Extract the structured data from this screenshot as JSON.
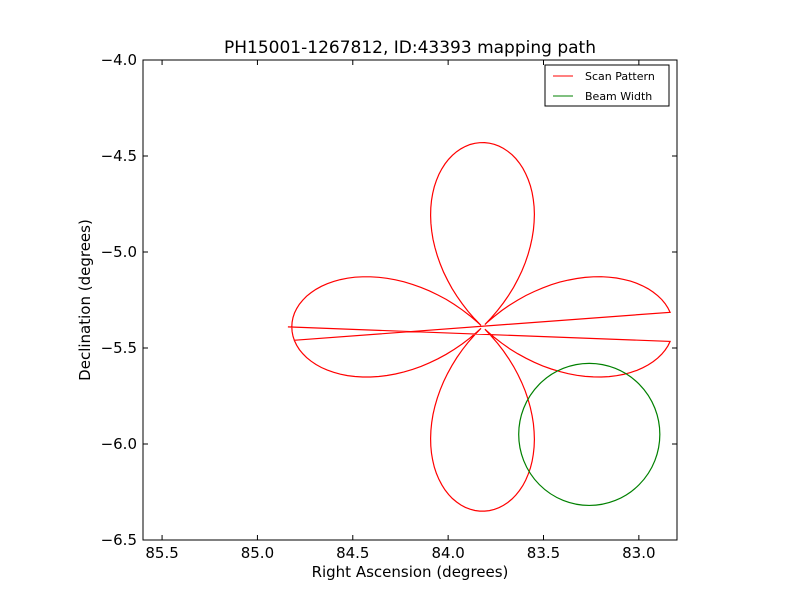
{
  "chart_data": {
    "type": "line",
    "title": "PH15001-1267812, ID:43393 mapping path",
    "xlabel": "Right Ascension (degrees)",
    "ylabel": "Declination (degrees)",
    "xlim": [
      85.6,
      82.8
    ],
    "ylim": [
      -6.5,
      -4.0
    ],
    "x_inverted": true,
    "xticks": [
      85.5,
      85.0,
      84.5,
      84.0,
      83.5,
      83.0
    ],
    "xtick_labels": [
      "85.5",
      "85.0",
      "84.5",
      "84.0",
      "83.5",
      "83.0"
    ],
    "yticks": [
      -4.0,
      -4.5,
      -5.0,
      -5.5,
      -6.0,
      -6.5
    ],
    "ytick_labels": [
      "−4.0",
      "−4.5",
      "−5.0",
      "−5.5",
      "−6.0",
      "−6.5"
    ],
    "grid": false,
    "legend_position": "top-right",
    "series": [
      {
        "name": "Scan Pattern",
        "color": "#ff0000",
        "center": [
          83.82,
          -5.39
        ],
        "petal_length": 1.0,
        "petals": 4,
        "start_ra": 84.84,
        "start_dec": -5.39,
        "end_ra": 84.81,
        "end_dec": -5.46
      },
      {
        "name": "Beam Width",
        "color": "#008000",
        "center": [
          83.26,
          -5.95
        ],
        "radius_deg": 0.37
      }
    ]
  }
}
